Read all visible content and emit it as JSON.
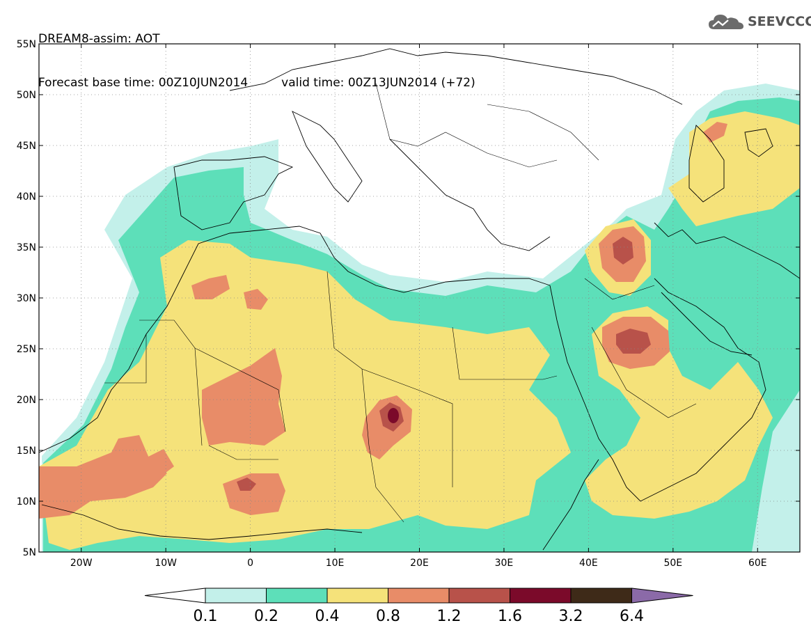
{
  "header": {
    "title": "DREAM8-assim: AOT",
    "base_time": "Forecast base time: 00Z10JUN2014",
    "valid_time": "valid time: 00Z13JUN2014 (+72)"
  },
  "logo": {
    "text": "SEEVCCC",
    "icon": "cloud-icon"
  },
  "map": {
    "lon_range": [
      -25,
      65
    ],
    "lat_range": [
      5,
      55
    ],
    "lat_ticks": [
      "5N",
      "10N",
      "15N",
      "20N",
      "25N",
      "30N",
      "35N",
      "40N",
      "45N",
      "50N",
      "55N"
    ],
    "lon_ticks": [
      "20W",
      "10W",
      "0",
      "10E",
      "20E",
      "30E",
      "40E",
      "50E",
      "60E"
    ],
    "grid": "dotted"
  },
  "colorbar": {
    "labels": [
      "0.1",
      "0.2",
      "0.4",
      "0.8",
      "1.2",
      "1.6",
      "3.2",
      "6.4"
    ],
    "colors": [
      "#c3f0ea",
      "#5ddfb9",
      "#f5e27a",
      "#e88c68",
      "#b8524a",
      "#7b0a2a",
      "#3e2a18",
      "#8b6aa8"
    ],
    "under_color": "#ffffff"
  }
}
